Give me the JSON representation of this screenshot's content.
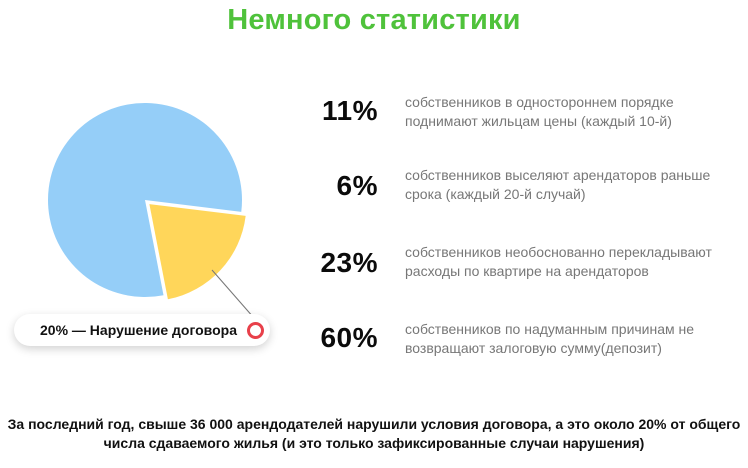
{
  "header": {
    "title": "Немного статистики"
  },
  "colors": {
    "accent": "#4fc23b",
    "pie_main": "#95cef8",
    "pie_highlight": "#ffd65a",
    "marker": "#e8404a"
  },
  "chart_data": {
    "type": "pie",
    "highlight_label": "20% — Нарушение договора",
    "slices": [
      {
        "value": 80,
        "color": "#95cef8"
      },
      {
        "value": 20,
        "color": "#ffd65a"
      }
    ]
  },
  "stats": [
    {
      "value": "11%",
      "text": "собственников в одностороннем порядке поднимают жильцам цены (каждый 10-й)"
    },
    {
      "value": "6%",
      "text": "собственников выселяют арендаторов раньше срока (каждый 20-й случай)"
    },
    {
      "value": "23%",
      "text": "собственников необоснованно перекладывают расходы по квартире на арендаторов"
    },
    {
      "value": "60%",
      "text": "собственников по надуманным причинам не возвращают залоговую сумму(депозит)"
    }
  ],
  "footer": {
    "text": "За последний год, свыше 36 000 арендодателей нарушили условия договора, а это около 20% от общего числа сдаваемого жилья (и это только зафиксированные случаи нарушения)"
  }
}
